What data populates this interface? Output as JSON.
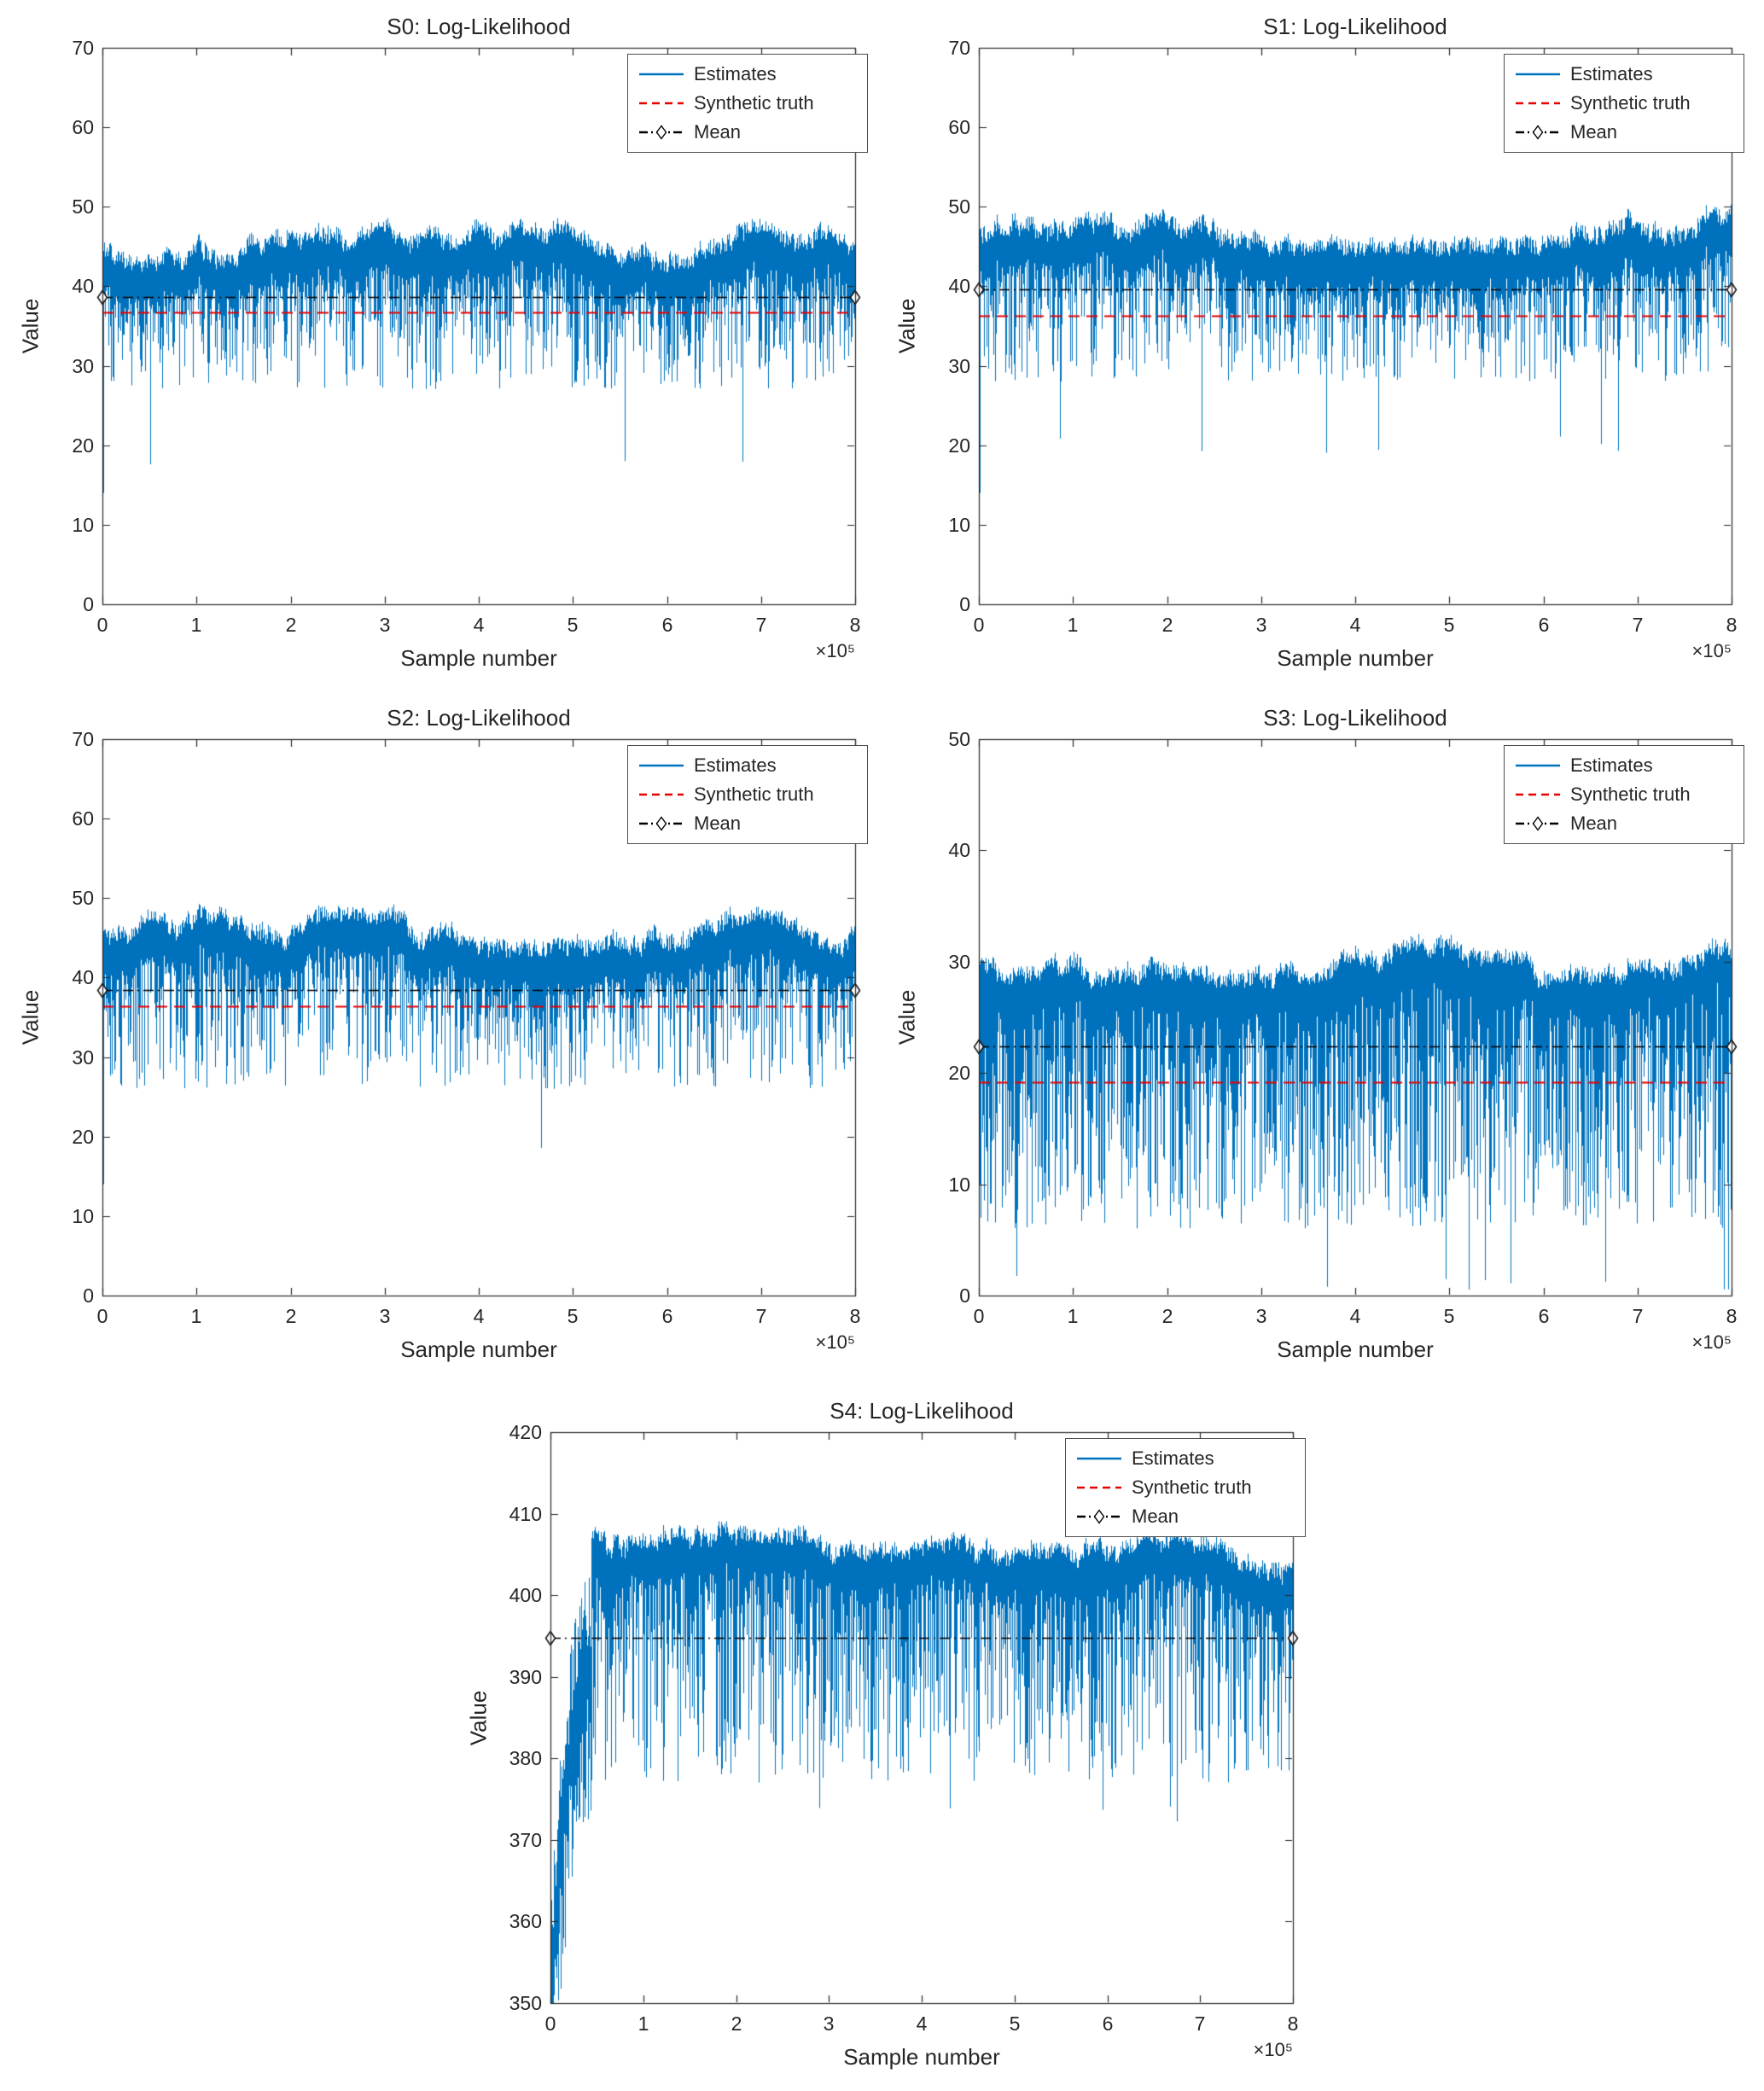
{
  "colors": {
    "estimates": "#0072BD",
    "synthetic_truth": "#e60000",
    "mean": "#000000",
    "axis": "#262626"
  },
  "chart_data": [
    {
      "type": "line",
      "id": "S0",
      "title": "S0: Log-Likelihood",
      "xlabel": "Sample number",
      "ylabel": "Value",
      "x_scale_label": "×10⁵",
      "xlim": [
        0,
        800000
      ],
      "ylim": [
        0,
        70
      ],
      "xticks": [
        0,
        1,
        2,
        3,
        4,
        5,
        6,
        7,
        8
      ],
      "yticks": [
        0,
        10,
        20,
        30,
        40,
        50,
        60,
        70
      ],
      "legend": [
        "Estimates",
        "Synthetic truth",
        "Mean"
      ],
      "grid": false,
      "legend_position": "top-right",
      "series": [
        {
          "name": "Estimates",
          "kind": "noisy-trace",
          "envelope_top": 46.3,
          "envelope_bottom": 27,
          "occasional_min": 17,
          "start_value": 0
        },
        {
          "name": "Synthetic truth",
          "kind": "hline",
          "value": 36.7
        },
        {
          "name": "Mean",
          "kind": "hline-diamond",
          "value": 38.6
        }
      ],
      "mean": 38.6,
      "truth": 36.7,
      "trace": {
        "top": 46.3,
        "band_low": 27,
        "spike_low": 17,
        "spike_p": 0.006,
        "tail": 2.0
      }
    },
    {
      "type": "line",
      "id": "S1",
      "title": "S1: Log-Likelihood",
      "xlabel": "Sample number",
      "ylabel": "Value",
      "x_scale_label": "×10⁵",
      "xlim": [
        0,
        800000
      ],
      "ylim": [
        0,
        70
      ],
      "xticks": [
        0,
        1,
        2,
        3,
        4,
        5,
        6,
        7,
        8
      ],
      "yticks": [
        0,
        10,
        20,
        30,
        40,
        50,
        60,
        70
      ],
      "legend": [
        "Estimates",
        "Synthetic truth",
        "Mean"
      ],
      "grid": false,
      "legend_position": "top-right",
      "series": [
        {
          "name": "Estimates",
          "kind": "noisy-trace",
          "envelope_top": 48.2,
          "envelope_bottom": 28,
          "occasional_min": 19,
          "start_value": 0
        },
        {
          "name": "Synthetic truth",
          "kind": "hline",
          "value": 36.3
        },
        {
          "name": "Mean",
          "kind": "hline-diamond",
          "value": 39.6
        }
      ],
      "mean": 39.6,
      "truth": 36.3,
      "trace": {
        "top": 48.2,
        "band_low": 28,
        "spike_low": 19,
        "spike_p": 0.005,
        "tail": 2.0
      }
    },
    {
      "type": "line",
      "id": "S2",
      "title": "S2: Log-Likelihood",
      "xlabel": "Sample number",
      "ylabel": "Value",
      "x_scale_label": "×10⁵",
      "xlim": [
        0,
        800000
      ],
      "ylim": [
        0,
        70
      ],
      "xticks": [
        0,
        1,
        2,
        3,
        4,
        5,
        6,
        7,
        8
      ],
      "yticks": [
        0,
        10,
        20,
        30,
        40,
        50,
        60,
        70
      ],
      "legend": [
        "Estimates",
        "Synthetic truth",
        "Mean"
      ],
      "grid": false,
      "legend_position": "top-right",
      "series": [
        {
          "name": "Estimates",
          "kind": "noisy-trace",
          "envelope_top": 47.0,
          "envelope_bottom": 26,
          "occasional_min": 17,
          "start_value": 0
        },
        {
          "name": "Synthetic truth",
          "kind": "hline",
          "value": 36.4
        },
        {
          "name": "Mean",
          "kind": "hline-diamond",
          "value": 38.4
        }
      ],
      "mean": 38.4,
      "truth": 36.4,
      "trace": {
        "top": 47.0,
        "band_low": 26,
        "spike_low": 17,
        "spike_p": 0.006,
        "tail": 2.0
      }
    },
    {
      "type": "line",
      "id": "S3",
      "title": "S3: Log-Likelihood",
      "xlabel": "Sample number",
      "ylabel": "Value",
      "x_scale_label": "×10⁵",
      "xlim": [
        0,
        800000
      ],
      "ylim": [
        0,
        50
      ],
      "xticks": [
        0,
        1,
        2,
        3,
        4,
        5,
        6,
        7,
        8
      ],
      "yticks": [
        0,
        10,
        20,
        30,
        40,
        50
      ],
      "legend": [
        "Estimates",
        "Synthetic truth",
        "Mean"
      ],
      "grid": false,
      "legend_position": "top-right",
      "series": [
        {
          "name": "Estimates",
          "kind": "noisy-trace",
          "envelope_top": 30.8,
          "envelope_bottom": 6,
          "occasional_min": 0.4,
          "start_value": 0
        },
        {
          "name": "Synthetic truth",
          "kind": "hline",
          "value": 19.2
        },
        {
          "name": "Mean",
          "kind": "hline-diamond",
          "value": 22.4
        }
      ],
      "mean": 22.4,
      "truth": 19.2,
      "trace": {
        "top": 30.8,
        "band_low": 6,
        "spike_low": 0.4,
        "spike_p": 0.012,
        "tail": 1.25
      }
    },
    {
      "type": "line",
      "id": "S4",
      "title": "S4: Log-Likelihood",
      "xlabel": "Sample number",
      "ylabel": "Value",
      "x_scale_label": "×10⁵",
      "xlim": [
        0,
        800000
      ],
      "ylim": [
        350,
        420
      ],
      "xticks": [
        0,
        1,
        2,
        3,
        4,
        5,
        6,
        7,
        8
      ],
      "yticks": [
        350,
        360,
        370,
        380,
        390,
        400,
        410,
        420
      ],
      "legend": [
        "Estimates",
        "Synthetic truth",
        "Mean"
      ],
      "grid": false,
      "legend_position": "top-right",
      "series": [
        {
          "name": "Estimates",
          "kind": "noisy-trace",
          "envelope_top": 405.3,
          "envelope_bottom": 377,
          "occasional_min": 372,
          "start_value": 350,
          "burn_in_rises_to": 391
        },
        {
          "name": "Synthetic truth",
          "kind": "hline",
          "value": null
        },
        {
          "name": "Mean",
          "kind": "hline-diamond",
          "value": 394.8
        }
      ],
      "mean": 394.8,
      "truth": null,
      "trace": {
        "top": 405.3,
        "band_low": 377,
        "spike_low": 372,
        "spike_p": 0.004,
        "tail": 1.8,
        "wander": 0.055,
        "burnin_frac": 0.055,
        "burnin_start": 350,
        "settle": 391
      }
    }
  ]
}
